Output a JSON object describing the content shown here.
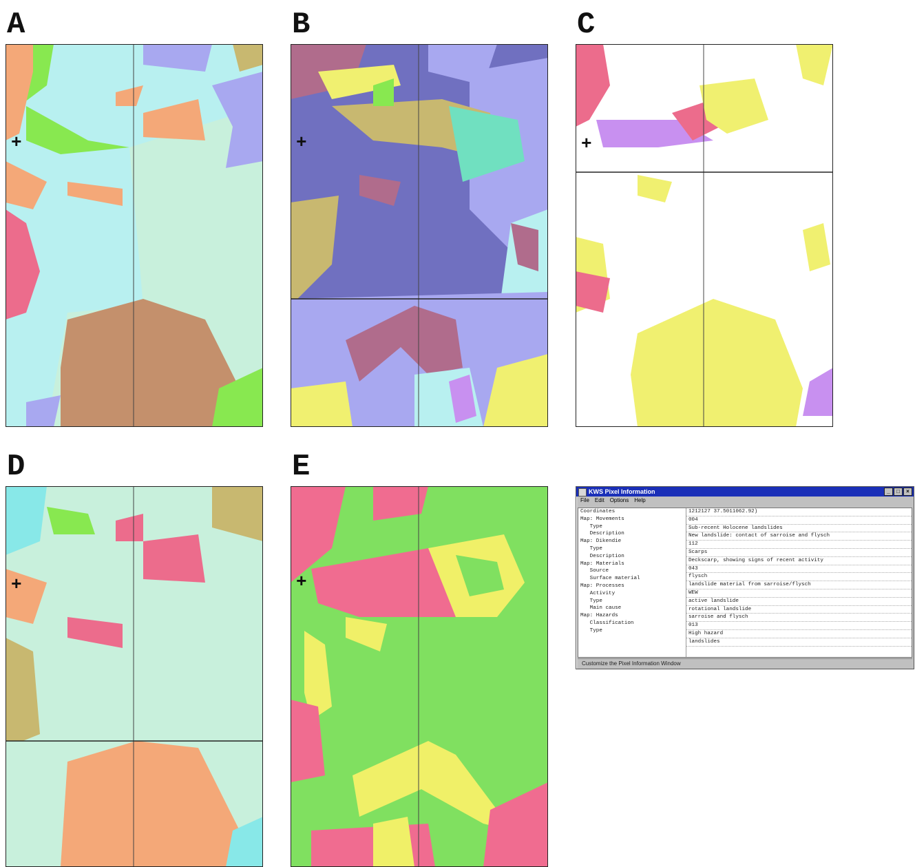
{
  "panels": {
    "a": {
      "letter": "A"
    },
    "b": {
      "letter": "B"
    },
    "c": {
      "letter": "C"
    },
    "d": {
      "letter": "D"
    },
    "e": {
      "letter": "E"
    }
  },
  "marker_symbol": "+",
  "colors": {
    "light_cyan": "#b8f0f0",
    "cyan": "#88e8e8",
    "pale_green": "#c8f0dc",
    "orange": "#f4a878",
    "green": "#88e850",
    "pink": "#ec6c8c",
    "brown": "#c4906c",
    "lavender": "#a8a8f0",
    "olive": "#c8b870",
    "slate_blue": "#7070c0",
    "mauve": "#b06c8c",
    "yellow": "#f0f070",
    "violet": "#c890f0",
    "teal": "#70e0c0",
    "bright_green": "#80e060",
    "hot_pink": "#f06c90",
    "map_yellow": "#f0f068"
  },
  "info_window": {
    "title": "KWS Pixel Information",
    "menu": [
      "File",
      "Edit",
      "Options",
      "Help"
    ],
    "labels": [
      "Coordinates",
      "Map: Movements",
      "   Type",
      "   Description",
      "Map: Dikendie",
      "   Type",
      "   Description",
      "Map: Materials",
      "   Source",
      "   Surface material",
      "Map: Processes",
      "   Activity",
      "   Type",
      "   Main cause",
      "Map: Hazards",
      "   Classification",
      "   Type"
    ],
    "values": [
      "1212127 37.5011062.92)",
      "004",
      "Sub-recent Holocene landslides",
      "New landslide: contact of sarroise and flysch",
      "112",
      "Scarps",
      "Deckscarp, showing signs of recent activity",
      "043",
      "flysch",
      "landslide material from sarroise/flysch",
      "WEW",
      "active landslide",
      "rotational landslide",
      "sarroise and flysch",
      "013",
      "High hazard",
      "landslides"
    ],
    "status": "Customize the Pixel Information Window"
  }
}
